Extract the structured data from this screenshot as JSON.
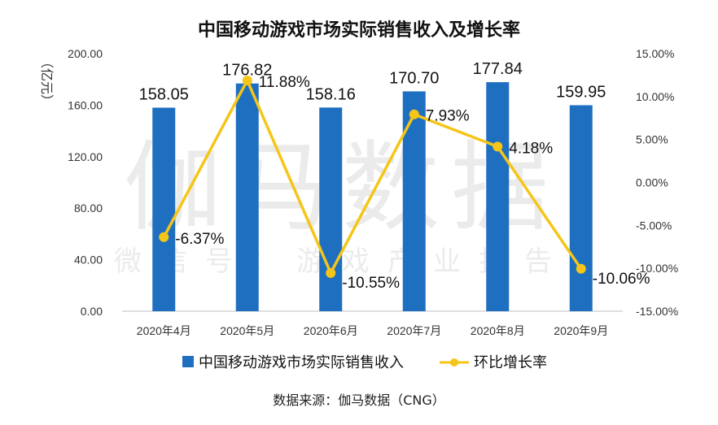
{
  "chart_data": {
    "type": "bar+line",
    "title": "中国移动游戏市场实际销售收入及增长率",
    "categories": [
      "2020年4月",
      "2020年5月",
      "2020年6月",
      "2020年7月",
      "2020年8月",
      "2020年9月"
    ],
    "series": [
      {
        "name": "中国移动游戏市场实际销售收入",
        "type": "bar",
        "axis": "left",
        "values": [
          158.05,
          176.82,
          158.16,
          170.7,
          177.84,
          159.95
        ],
        "labels": [
          "158.05",
          "176.82",
          "158.16",
          "170.70",
          "177.84",
          "159.95"
        ]
      },
      {
        "name": "环比增长率",
        "type": "line",
        "axis": "right",
        "values": [
          -6.37,
          11.88,
          -10.55,
          7.93,
          4.18,
          -10.06
        ],
        "labels": [
          "-6.37%",
          "11.88%",
          "-10.55%",
          "7.93%",
          "4.18%",
          "-10.06%"
        ]
      }
    ],
    "ylabel_left": "（亿元）",
    "ylim_left": [
      0,
      200
    ],
    "yticks_left": [
      "0.00",
      "40.00",
      "80.00",
      "120.00",
      "160.00",
      "200.00"
    ],
    "ylim_right": [
      -15,
      15
    ],
    "yticks_right": [
      "-15.00%",
      "-10.00%",
      "-5.00%",
      "0.00%",
      "5.00%",
      "10.00%",
      "15.00%"
    ],
    "grid": false,
    "legend_position": "bottom",
    "colors": {
      "bar": "#1f6fc1",
      "line": "#f5c518"
    }
  },
  "watermark": {
    "main": "伽马数据",
    "sub": "微信号：游戏产业报告"
  },
  "source": "数据来源：伽马数据（CNG）"
}
